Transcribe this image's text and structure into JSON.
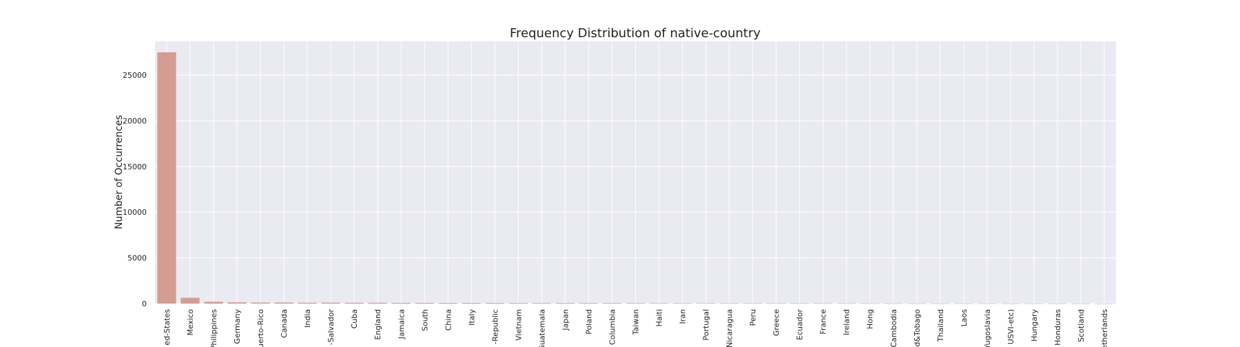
{
  "chart_data": {
    "type": "bar",
    "title": "Frequency Distribution of native-country",
    "xlabel": "",
    "ylabel": "Number of Occurrences",
    "ylim": [
      0,
      28700
    ],
    "yticks": [
      0,
      5000,
      10000,
      15000,
      20000,
      25000
    ],
    "grid": true,
    "bar_color": "#d59c94",
    "background_color": "#eaeaf2",
    "categories": [
      "ed-States",
      "Mexico",
      "Philippines",
      "Germany",
      "uerto-Rico",
      "Canada",
      "India",
      "-Salvador",
      "Cuba",
      "England",
      "Jamaica",
      "South",
      "China",
      "Italy",
      "-Republic",
      "Vietnam",
      "Guatemala",
      "Japan",
      "Poland",
      "Columbia",
      "Taiwan",
      "Haiti",
      "Iran",
      "Portugal",
      "Nicaragua",
      "Peru",
      "Greece",
      "Ecuador",
      "France",
      "Ireland",
      "Hong",
      "Cambodia",
      "d&Tobago",
      "Thailand",
      "Laos",
      "Yugoslavia",
      "USVI-etc)",
      "Hungary",
      "Honduras",
      "Scotland",
      "etherlands"
    ],
    "values": [
      27500,
      640,
      200,
      140,
      115,
      120,
      100,
      105,
      95,
      90,
      80,
      80,
      75,
      75,
      70,
      67,
      64,
      62,
      60,
      59,
      51,
      44,
      43,
      37,
      34,
      31,
      29,
      28,
      29,
      24,
      20,
      19,
      19,
      18,
      18,
      16,
      14,
      13,
      13,
      12,
      1
    ]
  }
}
